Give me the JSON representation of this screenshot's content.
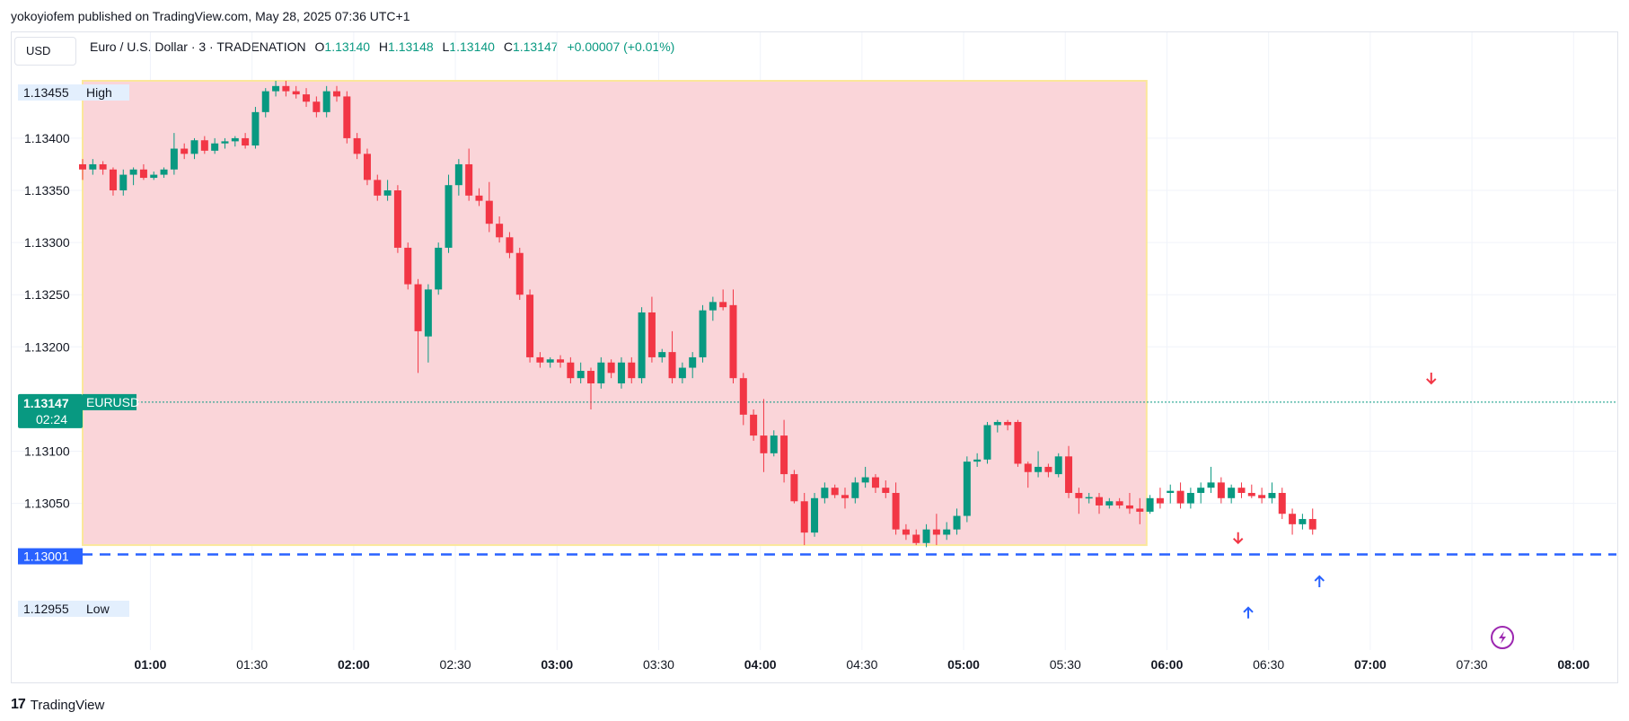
{
  "publisher": "yokoyiofem published on TradingView.com, May 28, 2025 07:36 UTC+1",
  "currency": "USD",
  "legend": {
    "symbol": "Euro / U.S. Dollar · 3 · TRADENATION",
    "open_label": "O",
    "open": "1.13140",
    "high_label": "H",
    "high": "1.13148",
    "low_label": "L",
    "low": "1.13140",
    "close_label": "C",
    "close": "1.13147",
    "change": "+0.00007 (+0.01%)"
  },
  "footer": {
    "logo_mark": "17",
    "brand": "TradingView"
  },
  "colors": {
    "up": "#089981",
    "down": "#f23645",
    "zone": "#fad5d9",
    "zone_border": "#fbe79a",
    "line": "#2962ff"
  },
  "chart_data": {
    "type": "candlestick",
    "timeframe_minutes": 3,
    "ylim": [
      1.1292,
      1.135
    ],
    "x_range": [
      "00:40",
      "08:10"
    ],
    "x_ticks": [
      {
        "t": "01:00",
        "label": "01:00",
        "bold": true
      },
      {
        "t": "01:30",
        "label": "01:30",
        "bold": false
      },
      {
        "t": "02:00",
        "label": "02:00",
        "bold": true
      },
      {
        "t": "02:30",
        "label": "02:30",
        "bold": false
      },
      {
        "t": "03:00",
        "label": "03:00",
        "bold": true
      },
      {
        "t": "03:30",
        "label": "03:30",
        "bold": false
      },
      {
        "t": "04:00",
        "label": "04:00",
        "bold": true
      },
      {
        "t": "04:30",
        "label": "04:30",
        "bold": false
      },
      {
        "t": "05:00",
        "label": "05:00",
        "bold": true
      },
      {
        "t": "05:30",
        "label": "05:30",
        "bold": false
      },
      {
        "t": "06:00",
        "label": "06:00",
        "bold": true
      },
      {
        "t": "06:30",
        "label": "06:30",
        "bold": false
      },
      {
        "t": "07:00",
        "label": "07:00",
        "bold": true
      },
      {
        "t": "07:30",
        "label": "07:30",
        "bold": false
      },
      {
        "t": "08:00",
        "label": "08:00",
        "bold": true
      }
    ],
    "y_ticks": [
      "1.13400",
      "1.13350",
      "1.13300",
      "1.13250",
      "1.13200",
      "1.13100",
      "1.13050"
    ],
    "price_labels": {
      "high": {
        "value": "1.13455",
        "text": "High"
      },
      "low": {
        "value": "1.12955",
        "text": "Low"
      },
      "level": {
        "value": "1.13001"
      },
      "last": {
        "value": "1.13147",
        "countdown": "02:24",
        "symbol": "EURUSD"
      }
    },
    "zone": {
      "start": "00:40",
      "end": "05:54",
      "top": 1.13455,
      "bottom": 1.1301
    },
    "level_line": 1.13001,
    "current_price": 1.13147,
    "candles": [
      {
        "t": "00:40",
        "o": 1.13375,
        "h": 1.1338,
        "l": 1.1336,
        "c": 1.1337
      },
      {
        "t": "00:43",
        "o": 1.1337,
        "h": 1.1338,
        "l": 1.13365,
        "c": 1.13375
      },
      {
        "t": "00:46",
        "o": 1.13375,
        "h": 1.13378,
        "l": 1.13365,
        "c": 1.1337
      },
      {
        "t": "00:49",
        "o": 1.1337,
        "h": 1.13372,
        "l": 1.13345,
        "c": 1.1335
      },
      {
        "t": "00:52",
        "o": 1.1335,
        "h": 1.1337,
        "l": 1.13345,
        "c": 1.13365
      },
      {
        "t": "00:55",
        "o": 1.13365,
        "h": 1.13372,
        "l": 1.13355,
        "c": 1.1337
      },
      {
        "t": "00:58",
        "o": 1.1337,
        "h": 1.13375,
        "l": 1.1336,
        "c": 1.13362
      },
      {
        "t": "01:01",
        "o": 1.13362,
        "h": 1.13368,
        "l": 1.1336,
        "c": 1.13365
      },
      {
        "t": "01:04",
        "o": 1.13365,
        "h": 1.13372,
        "l": 1.13362,
        "c": 1.1337
      },
      {
        "t": "01:07",
        "o": 1.1337,
        "h": 1.13405,
        "l": 1.13365,
        "c": 1.1339
      },
      {
        "t": "01:10",
        "o": 1.1339,
        "h": 1.13395,
        "l": 1.1338,
        "c": 1.13385
      },
      {
        "t": "01:13",
        "o": 1.13385,
        "h": 1.134,
        "l": 1.1338,
        "c": 1.13398
      },
      {
        "t": "01:16",
        "o": 1.13398,
        "h": 1.13402,
        "l": 1.13385,
        "c": 1.13388
      },
      {
        "t": "01:19",
        "o": 1.13388,
        "h": 1.134,
        "l": 1.13385,
        "c": 1.13395
      },
      {
        "t": "01:22",
        "o": 1.13395,
        "h": 1.134,
        "l": 1.1339,
        "c": 1.13397
      },
      {
        "t": "01:25",
        "o": 1.13397,
        "h": 1.13402,
        "l": 1.13392,
        "c": 1.134
      },
      {
        "t": "01:28",
        "o": 1.134,
        "h": 1.13405,
        "l": 1.1339,
        "c": 1.13393
      },
      {
        "t": "01:31",
        "o": 1.13393,
        "h": 1.1343,
        "l": 1.1339,
        "c": 1.13425
      },
      {
        "t": "01:34",
        "o": 1.13425,
        "h": 1.13448,
        "l": 1.1342,
        "c": 1.13445
      },
      {
        "t": "01:37",
        "o": 1.13445,
        "h": 1.13455,
        "l": 1.1344,
        "c": 1.1345
      },
      {
        "t": "01:40",
        "o": 1.1345,
        "h": 1.13455,
        "l": 1.1344,
        "c": 1.13445
      },
      {
        "t": "01:43",
        "o": 1.13445,
        "h": 1.1345,
        "l": 1.13438,
        "c": 1.13442
      },
      {
        "t": "01:46",
        "o": 1.13442,
        "h": 1.13448,
        "l": 1.1343,
        "c": 1.13435
      },
      {
        "t": "01:49",
        "o": 1.13435,
        "h": 1.1344,
        "l": 1.1342,
        "c": 1.13425
      },
      {
        "t": "01:52",
        "o": 1.13425,
        "h": 1.1345,
        "l": 1.1342,
        "c": 1.13445
      },
      {
        "t": "01:55",
        "o": 1.13445,
        "h": 1.1345,
        "l": 1.13435,
        "c": 1.1344
      },
      {
        "t": "01:58",
        "o": 1.1344,
        "h": 1.13445,
        "l": 1.13395,
        "c": 1.134
      },
      {
        "t": "02:01",
        "o": 1.134,
        "h": 1.13405,
        "l": 1.1338,
        "c": 1.13385
      },
      {
        "t": "02:04",
        "o": 1.13385,
        "h": 1.1339,
        "l": 1.13355,
        "c": 1.1336
      },
      {
        "t": "02:07",
        "o": 1.1336,
        "h": 1.13365,
        "l": 1.1334,
        "c": 1.13345
      },
      {
        "t": "02:10",
        "o": 1.13345,
        "h": 1.1336,
        "l": 1.1334,
        "c": 1.1335
      },
      {
        "t": "02:13",
        "o": 1.1335,
        "h": 1.13355,
        "l": 1.1329,
        "c": 1.13295
      },
      {
        "t": "02:16",
        "o": 1.13295,
        "h": 1.133,
        "l": 1.13255,
        "c": 1.1326
      },
      {
        "t": "02:19",
        "o": 1.1326,
        "h": 1.13265,
        "l": 1.13175,
        "c": 1.13215
      },
      {
        "t": "02:22",
        "o": 1.1321,
        "h": 1.1326,
        "l": 1.13185,
        "c": 1.13255
      },
      {
        "t": "02:25",
        "o": 1.13255,
        "h": 1.133,
        "l": 1.1325,
        "c": 1.13295
      },
      {
        "t": "02:28",
        "o": 1.13295,
        "h": 1.13365,
        "l": 1.1329,
        "c": 1.13355
      },
      {
        "t": "02:31",
        "o": 1.13355,
        "h": 1.1338,
        "l": 1.13345,
        "c": 1.13375
      },
      {
        "t": "02:34",
        "o": 1.13375,
        "h": 1.1339,
        "l": 1.1334,
        "c": 1.13345
      },
      {
        "t": "02:37",
        "o": 1.13345,
        "h": 1.13352,
        "l": 1.13335,
        "c": 1.1334
      },
      {
        "t": "02:40",
        "o": 1.1334,
        "h": 1.13358,
        "l": 1.1331,
        "c": 1.13318
      },
      {
        "t": "02:43",
        "o": 1.13318,
        "h": 1.13325,
        "l": 1.133,
        "c": 1.13305
      },
      {
        "t": "02:46",
        "o": 1.13305,
        "h": 1.1331,
        "l": 1.13285,
        "c": 1.1329
      },
      {
        "t": "02:49",
        "o": 1.1329,
        "h": 1.13295,
        "l": 1.13245,
        "c": 1.1325
      },
      {
        "t": "02:52",
        "o": 1.1325,
        "h": 1.13255,
        "l": 1.13185,
        "c": 1.1319
      },
      {
        "t": "02:55",
        "o": 1.1319,
        "h": 1.13195,
        "l": 1.1318,
        "c": 1.13185
      },
      {
        "t": "02:58",
        "o": 1.13185,
        "h": 1.1319,
        "l": 1.1318,
        "c": 1.13188
      },
      {
        "t": "03:01",
        "o": 1.13188,
        "h": 1.13192,
        "l": 1.1318,
        "c": 1.13185
      },
      {
        "t": "03:04",
        "o": 1.13185,
        "h": 1.1319,
        "l": 1.13165,
        "c": 1.1317
      },
      {
        "t": "03:07",
        "o": 1.1317,
        "h": 1.13185,
        "l": 1.13165,
        "c": 1.13177
      },
      {
        "t": "03:10",
        "o": 1.13177,
        "h": 1.1318,
        "l": 1.1314,
        "c": 1.13165
      },
      {
        "t": "03:13",
        "o": 1.13165,
        "h": 1.1319,
        "l": 1.1316,
        "c": 1.13185
      },
      {
        "t": "03:16",
        "o": 1.13185,
        "h": 1.13188,
        "l": 1.1317,
        "c": 1.13175
      },
      {
        "t": "03:19",
        "o": 1.13165,
        "h": 1.1319,
        "l": 1.1316,
        "c": 1.13185
      },
      {
        "t": "03:22",
        "o": 1.13185,
        "h": 1.1319,
        "l": 1.13165,
        "c": 1.1317
      },
      {
        "t": "03:25",
        "o": 1.1317,
        "h": 1.13238,
        "l": 1.13165,
        "c": 1.13233
      },
      {
        "t": "03:28",
        "o": 1.13233,
        "h": 1.13248,
        "l": 1.13185,
        "c": 1.1319
      },
      {
        "t": "03:31",
        "o": 1.1319,
        "h": 1.13198,
        "l": 1.13185,
        "c": 1.13195
      },
      {
        "t": "03:34",
        "o": 1.13195,
        "h": 1.13215,
        "l": 1.13165,
        "c": 1.1317
      },
      {
        "t": "03:37",
        "o": 1.1317,
        "h": 1.13185,
        "l": 1.13165,
        "c": 1.1318
      },
      {
        "t": "03:40",
        "o": 1.1318,
        "h": 1.13195,
        "l": 1.1317,
        "c": 1.1319
      },
      {
        "t": "03:43",
        "o": 1.1319,
        "h": 1.1324,
        "l": 1.13185,
        "c": 1.13235
      },
      {
        "t": "03:46",
        "o": 1.13235,
        "h": 1.13248,
        "l": 1.13225,
        "c": 1.13243
      },
      {
        "t": "03:49",
        "o": 1.13243,
        "h": 1.13255,
        "l": 1.13235,
        "c": 1.13238
      },
      {
        "t": "03:52",
        "o": 1.1324,
        "h": 1.13255,
        "l": 1.13165,
        "c": 1.1317
      },
      {
        "t": "03:55",
        "o": 1.1317,
        "h": 1.13175,
        "l": 1.13125,
        "c": 1.13135
      },
      {
        "t": "03:58",
        "o": 1.13135,
        "h": 1.1314,
        "l": 1.1311,
        "c": 1.13115
      },
      {
        "t": "04:01",
        "o": 1.13115,
        "h": 1.1315,
        "l": 1.1308,
        "c": 1.13098
      },
      {
        "t": "04:04",
        "o": 1.13098,
        "h": 1.1312,
        "l": 1.13095,
        "c": 1.13115
      },
      {
        "t": "04:07",
        "o": 1.13115,
        "h": 1.1313,
        "l": 1.1307,
        "c": 1.13078
      },
      {
        "t": "04:10",
        "o": 1.13078,
        "h": 1.13082,
        "l": 1.1305,
        "c": 1.13052
      },
      {
        "t": "04:13",
        "o": 1.13052,
        "h": 1.1306,
        "l": 1.1301,
        "c": 1.13022
      },
      {
        "t": "04:16",
        "o": 1.13022,
        "h": 1.1306,
        "l": 1.13018,
        "c": 1.13055
      },
      {
        "t": "04:19",
        "o": 1.13055,
        "h": 1.1307,
        "l": 1.1305,
        "c": 1.13065
      },
      {
        "t": "04:22",
        "o": 1.13065,
        "h": 1.13068,
        "l": 1.13055,
        "c": 1.13058
      },
      {
        "t": "04:25",
        "o": 1.13058,
        "h": 1.13065,
        "l": 1.13045,
        "c": 1.13055
      },
      {
        "t": "04:28",
        "o": 1.13055,
        "h": 1.13075,
        "l": 1.1305,
        "c": 1.1307
      },
      {
        "t": "04:31",
        "o": 1.1307,
        "h": 1.13085,
        "l": 1.13065,
        "c": 1.13075
      },
      {
        "t": "04:34",
        "o": 1.13075,
        "h": 1.13078,
        "l": 1.1306,
        "c": 1.13065
      },
      {
        "t": "04:37",
        "o": 1.13065,
        "h": 1.13072,
        "l": 1.13055,
        "c": 1.1306
      },
      {
        "t": "04:40",
        "o": 1.1306,
        "h": 1.1307,
        "l": 1.1302,
        "c": 1.13025
      },
      {
        "t": "04:43",
        "o": 1.13025,
        "h": 1.1303,
        "l": 1.13015,
        "c": 1.1302
      },
      {
        "t": "04:46",
        "o": 1.1302,
        "h": 1.13025,
        "l": 1.1301,
        "c": 1.13012
      },
      {
        "t": "04:49",
        "o": 1.13012,
        "h": 1.1303,
        "l": 1.13008,
        "c": 1.13025
      },
      {
        "t": "04:52",
        "o": 1.13025,
        "h": 1.1304,
        "l": 1.1301,
        "c": 1.1302
      },
      {
        "t": "04:55",
        "o": 1.1302,
        "h": 1.13032,
        "l": 1.13015,
        "c": 1.13025
      },
      {
        "t": "04:58",
        "o": 1.13025,
        "h": 1.13045,
        "l": 1.1302,
        "c": 1.13038
      },
      {
        "t": "05:01",
        "o": 1.13038,
        "h": 1.13095,
        "l": 1.13032,
        "c": 1.1309
      },
      {
        "t": "05:04",
        "o": 1.1309,
        "h": 1.13098,
        "l": 1.13085,
        "c": 1.13092
      },
      {
        "t": "05:07",
        "o": 1.13092,
        "h": 1.13128,
        "l": 1.13088,
        "c": 1.13125
      },
      {
        "t": "05:10",
        "o": 1.13125,
        "h": 1.1313,
        "l": 1.13118,
        "c": 1.13128
      },
      {
        "t": "05:13",
        "o": 1.13128,
        "h": 1.1313,
        "l": 1.1312,
        "c": 1.13125
      },
      {
        "t": "05:16",
        "o": 1.13128,
        "h": 1.1313,
        "l": 1.13085,
        "c": 1.13088
      },
      {
        "t": "05:19",
        "o": 1.13088,
        "h": 1.1309,
        "l": 1.13065,
        "c": 1.1308
      },
      {
        "t": "05:22",
        "o": 1.1308,
        "h": 1.131,
        "l": 1.13075,
        "c": 1.13085
      },
      {
        "t": "05:25",
        "o": 1.13085,
        "h": 1.13088,
        "l": 1.13075,
        "c": 1.1308
      },
      {
        "t": "05:28",
        "o": 1.13078,
        "h": 1.13098,
        "l": 1.13075,
        "c": 1.13095
      },
      {
        "t": "05:31",
        "o": 1.13095,
        "h": 1.13105,
        "l": 1.13055,
        "c": 1.1306
      },
      {
        "t": "05:34",
        "o": 1.1306,
        "h": 1.13065,
        "l": 1.1304,
        "c": 1.13055
      },
      {
        "t": "05:37",
        "o": 1.13055,
        "h": 1.1306,
        "l": 1.1305,
        "c": 1.13056
      },
      {
        "t": "05:40",
        "o": 1.13056,
        "h": 1.1306,
        "l": 1.1304,
        "c": 1.13048
      },
      {
        "t": "05:43",
        "o": 1.13048,
        "h": 1.13055,
        "l": 1.13045,
        "c": 1.13052
      },
      {
        "t": "05:46",
        "o": 1.13052,
        "h": 1.13055,
        "l": 1.13045,
        "c": 1.13048
      },
      {
        "t": "05:49",
        "o": 1.13048,
        "h": 1.1306,
        "l": 1.1304,
        "c": 1.13045
      },
      {
        "t": "05:52",
        "o": 1.13045,
        "h": 1.13055,
        "l": 1.1303,
        "c": 1.13042
      }
    ],
    "candles_tail": [
      {
        "t": "05:55",
        "o": 1.13042,
        "h": 1.13058,
        "l": 1.1304,
        "c": 1.13055
      },
      {
        "t": "05:58",
        "o": 1.13055,
        "h": 1.13065,
        "l": 1.13045,
        "c": 1.1305
      },
      {
        "t": "06:01",
        "o": 1.1306,
        "h": 1.13068,
        "l": 1.1305,
        "c": 1.13062
      },
      {
        "t": "06:04",
        "o": 1.13062,
        "h": 1.1307,
        "l": 1.13045,
        "c": 1.1305
      },
      {
        "t": "06:07",
        "o": 1.1305,
        "h": 1.13065,
        "l": 1.13045,
        "c": 1.1306
      },
      {
        "t": "06:10",
        "o": 1.1306,
        "h": 1.1307,
        "l": 1.1305,
        "c": 1.13065
      },
      {
        "t": "06:13",
        "o": 1.13065,
        "h": 1.13085,
        "l": 1.1306,
        "c": 1.1307
      },
      {
        "t": "06:16",
        "o": 1.1307,
        "h": 1.13075,
        "l": 1.1305,
        "c": 1.13055
      },
      {
        "t": "06:19",
        "o": 1.13055,
        "h": 1.13068,
        "l": 1.1305,
        "c": 1.13065
      },
      {
        "t": "06:22",
        "o": 1.13065,
        "h": 1.1307,
        "l": 1.13055,
        "c": 1.1306
      },
      {
        "t": "06:25",
        "o": 1.1306,
        "h": 1.13068,
        "l": 1.13055,
        "c": 1.13057
      },
      {
        "t": "06:28",
        "o": 1.13058,
        "h": 1.13065,
        "l": 1.1305,
        "c": 1.13055
      },
      {
        "t": "06:31",
        "o": 1.13055,
        "h": 1.1307,
        "l": 1.1305,
        "c": 1.1306
      },
      {
        "t": "06:34",
        "o": 1.1306,
        "h": 1.13065,
        "l": 1.13035,
        "c": 1.1304
      },
      {
        "t": "06:37",
        "o": 1.1304,
        "h": 1.13045,
        "l": 1.1302,
        "c": 1.1303
      },
      {
        "t": "06:40",
        "o": 1.1303,
        "h": 1.1304,
        "l": 1.13025,
        "c": 1.13035
      },
      {
        "t": "06:43",
        "o": 1.13035,
        "h": 1.13045,
        "l": 1.1302,
        "c": 1.13025
      }
    ]
  }
}
